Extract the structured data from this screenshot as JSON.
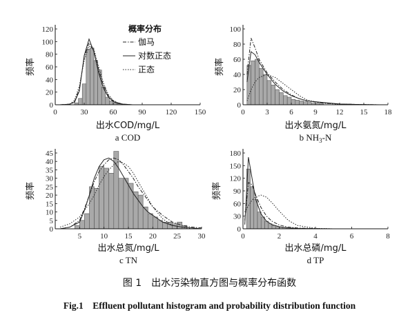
{
  "legend": {
    "title": "概率分布",
    "items": [
      {
        "label": "伽马",
        "style": "dashdot"
      },
      {
        "label": "对数正态",
        "style": "solid"
      },
      {
        "label": "正态",
        "style": "dotted"
      }
    ]
  },
  "caption_cn": "图 1　出水污染物直方图与概率分布函数",
  "caption_en": "Fig.1　Effluent pollutant histogram and probability distribution function",
  "colors": {
    "bar_fill": "#a9a9a9",
    "bar_stroke": "#555555",
    "curve": "#222222"
  },
  "chart_data": [
    {
      "id": "a",
      "type": "bar",
      "subtitle": "a COD",
      "xlabel": "出水COD/mg/L",
      "ylabel": "频率",
      "xlim": [
        0,
        150
      ],
      "ylim": [
        0,
        120
      ],
      "xticks": [
        0,
        30,
        60,
        90,
        120,
        150
      ],
      "yticks": [
        0,
        20,
        40,
        60,
        80,
        100,
        120
      ],
      "bin_edges": [
        20,
        24,
        28,
        32,
        36,
        40,
        44,
        48,
        52,
        56,
        60,
        64,
        68
      ],
      "counts": [
        3,
        10,
        33,
        88,
        90,
        70,
        55,
        28,
        12,
        6,
        3,
        2
      ],
      "curves": [
        {
          "name": "伽马",
          "style": "dashdot",
          "x": [
            5,
            15,
            20,
            25,
            30,
            35,
            40,
            45,
            50,
            55,
            60,
            65,
            70,
            80,
            100,
            150
          ],
          "y": [
            0,
            1,
            5,
            25,
            75,
            98,
            85,
            55,
            30,
            14,
            6,
            3,
            1,
            0,
            0,
            0
          ]
        },
        {
          "name": "对数正态",
          "style": "solid",
          "x": [
            5,
            15,
            20,
            25,
            30,
            35,
            40,
            45,
            50,
            55,
            60,
            65,
            70,
            80,
            100,
            150
          ],
          "y": [
            0,
            1,
            4,
            22,
            78,
            104,
            84,
            50,
            26,
            12,
            5,
            2,
            1,
            0,
            0,
            0
          ]
        },
        {
          "name": "正态",
          "style": "dotted",
          "x": [
            5,
            15,
            20,
            25,
            30,
            35,
            40,
            45,
            50,
            55,
            60,
            65,
            70,
            80,
            100,
            150
          ],
          "y": [
            0,
            1,
            7,
            30,
            70,
            93,
            88,
            60,
            34,
            16,
            7,
            3,
            1,
            0,
            0,
            0
          ]
        }
      ]
    },
    {
      "id": "b",
      "type": "bar",
      "subtitle_main": "b NH",
      "subtitle_sub": "3",
      "subtitle_tail": "-N",
      "xlabel": "出水氨氮/mg/L",
      "ylabel": "频率",
      "xlim": [
        0,
        18
      ],
      "ylim": [
        0,
        100
      ],
      "xticks": [
        0,
        3,
        6,
        9,
        12,
        15,
        18
      ],
      "yticks": [
        0,
        20,
        40,
        60,
        80,
        100
      ],
      "bin_edges": [
        0.5,
        1,
        1.5,
        2,
        2.5,
        3,
        3.5,
        4,
        4.5,
        5,
        5.5,
        6,
        6.5,
        7,
        7.5,
        8,
        8.5,
        9,
        9.5,
        10
      ],
      "counts": [
        52,
        58,
        60,
        48,
        40,
        32,
        26,
        20,
        16,
        12,
        10,
        7,
        6,
        5,
        4,
        3,
        2,
        2,
        1
      ],
      "curves": [
        {
          "name": "伽马",
          "style": "dashdot",
          "x": [
            0.5,
            1,
            1.5,
            2,
            3,
            4,
            5,
            6,
            7,
            8,
            10,
            12,
            14,
            17
          ],
          "y": [
            40,
            88,
            75,
            60,
            42,
            30,
            20,
            13,
            8,
            5,
            2,
            1,
            0.5,
            0
          ]
        },
        {
          "name": "对数正态",
          "style": "solid",
          "x": [
            0.5,
            1,
            1.5,
            2,
            3,
            4,
            5,
            6,
            7,
            8,
            10,
            12,
            14,
            17
          ],
          "y": [
            30,
            70,
            66,
            56,
            40,
            27,
            18,
            12,
            8,
            5,
            3,
            1,
            0.5,
            0
          ]
        },
        {
          "name": "正态",
          "style": "dotted",
          "x": [
            0.5,
            1,
            1.5,
            2,
            3,
            4,
            5,
            6,
            7,
            8,
            10,
            12,
            14,
            17
          ],
          "y": [
            5,
            20,
            30,
            36,
            40,
            36,
            28,
            20,
            12,
            6,
            2,
            0.5,
            0,
            0
          ]
        }
      ]
    },
    {
      "id": "c",
      "type": "bar",
      "subtitle": "c TN",
      "xlabel": "出水总氮/mg/L",
      "ylabel": "频率",
      "xlim": [
        0,
        30
      ],
      "ylim": [
        0,
        45
      ],
      "xticks": [
        5,
        10,
        15,
        20,
        25,
        30
      ],
      "yticks": [
        0,
        5,
        10,
        15,
        20,
        25,
        30,
        35,
        40,
        45
      ],
      "bin_edges": [
        4,
        5,
        6,
        7,
        8,
        9,
        10,
        11,
        12,
        13,
        14,
        15,
        16,
        17,
        18,
        19,
        20,
        21,
        22,
        23,
        24,
        25,
        26,
        27
      ],
      "counts": [
        2,
        5,
        9,
        25,
        24,
        37,
        36,
        33,
        46,
        30,
        30,
        27,
        22,
        20,
        13,
        9,
        7,
        5,
        4,
        4,
        3,
        4,
        2
      ],
      "curves": [
        {
          "name": "伽马",
          "style": "dashdot",
          "x": [
            1,
            3,
            5,
            6,
            7,
            8,
            9,
            10,
            11,
            12,
            13,
            14,
            15,
            16,
            17,
            18,
            19,
            20,
            22,
            24,
            26,
            28,
            30
          ],
          "y": [
            0,
            1,
            5,
            12,
            20,
            28,
            34,
            38,
            41,
            42,
            41,
            38,
            34,
            30,
            25,
            21,
            17,
            13,
            8,
            4,
            2,
            1,
            0.5
          ]
        },
        {
          "name": "对数正态",
          "style": "solid",
          "x": [
            1,
            3,
            5,
            6,
            7,
            8,
            9,
            10,
            11,
            12,
            13,
            14,
            15,
            16,
            17,
            18,
            19,
            20,
            22,
            24,
            26,
            28,
            30
          ],
          "y": [
            0,
            1,
            4,
            11,
            20,
            30,
            37,
            41,
            42,
            40,
            36,
            31,
            26,
            21,
            17,
            13,
            10,
            8,
            4,
            2,
            1,
            0.5,
            0
          ]
        },
        {
          "name": "正态",
          "style": "dotted",
          "x": [
            1,
            3,
            5,
            6,
            7,
            8,
            9,
            10,
            11,
            12,
            13,
            14,
            15,
            16,
            17,
            18,
            19,
            20,
            22,
            24,
            26,
            28,
            30
          ],
          "y": [
            1,
            3,
            7,
            11,
            15,
            20,
            26,
            31,
            35,
            38,
            40,
            39,
            37,
            33,
            28,
            23,
            18,
            13,
            6,
            2,
            1,
            0,
            0
          ]
        }
      ]
    },
    {
      "id": "d",
      "type": "bar",
      "subtitle": "d TP",
      "xlabel": "出水总磷/mg/L",
      "ylabel": "频率",
      "xlim": [
        0,
        8
      ],
      "ylim": [
        0,
        180
      ],
      "xticks": [
        0,
        2,
        4,
        6,
        8
      ],
      "yticks": [
        0,
        30,
        60,
        90,
        120,
        150,
        180
      ],
      "bin_edges": [
        0.2,
        0.4,
        0.6,
        0.8,
        1.0,
        1.2,
        1.4,
        1.6,
        1.8,
        2.0,
        2.2,
        2.4,
        2.6,
        2.8,
        3.0
      ],
      "counts": [
        142,
        100,
        70,
        40,
        28,
        18,
        12,
        8,
        5,
        4,
        3,
        2,
        2,
        1
      ],
      "curves": [
        {
          "name": "伽马",
          "style": "dashdot",
          "x": [
            0.1,
            0.3,
            0.5,
            0.7,
            1.0,
            1.3,
            1.6,
            2.0,
            2.5,
            3,
            4,
            5,
            6,
            8
          ],
          "y": [
            20,
            110,
            105,
            80,
            50,
            30,
            18,
            9,
            4,
            2,
            0.5,
            0,
            0,
            0
          ]
        },
        {
          "name": "对数正态",
          "style": "solid",
          "x": [
            0.1,
            0.3,
            0.5,
            0.7,
            1.0,
            1.3,
            1.6,
            2.0,
            2.5,
            3,
            4,
            5,
            6,
            8
          ],
          "y": [
            10,
            170,
            120,
            70,
            35,
            18,
            10,
            5,
            2,
            1,
            0.5,
            0,
            0,
            0
          ]
        },
        {
          "name": "正态",
          "style": "dotted",
          "x": [
            0.1,
            0.3,
            0.5,
            0.7,
            1.0,
            1.3,
            1.6,
            2.0,
            2.5,
            3,
            4,
            5,
            6,
            8
          ],
          "y": [
            40,
            55,
            68,
            76,
            80,
            75,
            62,
            42,
            20,
            8,
            1,
            0,
            0,
            0
          ]
        }
      ]
    }
  ]
}
